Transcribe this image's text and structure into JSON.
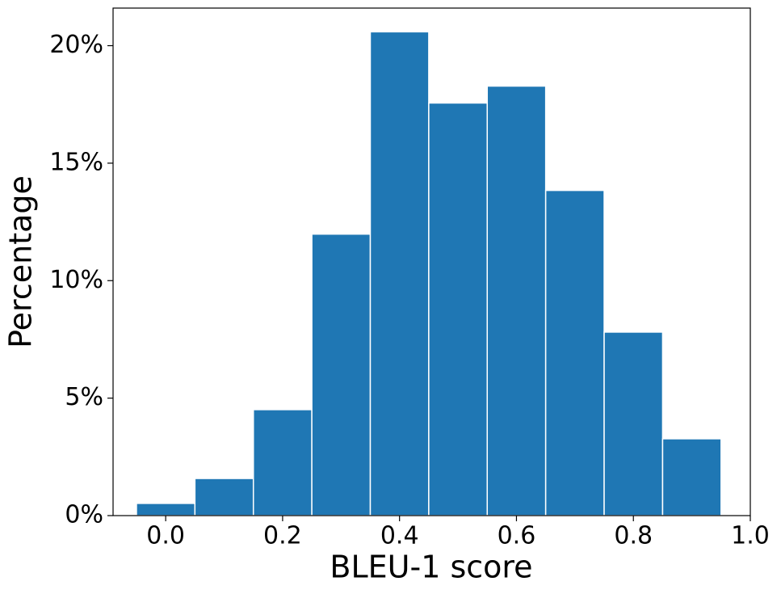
{
  "chart_data": {
    "type": "histogram",
    "x_label": "BLEU-1 score",
    "y_label": "Percentage",
    "bins": [
      -0.05,
      0.05,
      0.15,
      0.25,
      0.35,
      0.45,
      0.55,
      0.65,
      0.75,
      0.85,
      0.95
    ],
    "counts": [
      0.52,
      1.58,
      4.51,
      11.98,
      20.59,
      17.56,
      18.28,
      13.84,
      7.81,
      3.27
    ],
    "color": "#1f77b4",
    "xlim": [
      -0.09,
      1.0
    ],
    "xticks": [
      {
        "value": 0,
        "label": "0.0"
      },
      0.2,
      0.4,
      0.6,
      0.8,
      {
        "value": 1,
        "label": "1.0"
      }
    ],
    "ylim": [
      0,
      21.6
    ],
    "yticks": [
      {
        "value": 0,
        "label": "0%"
      },
      {
        "value": 5,
        "label": "5%"
      },
      {
        "value": 10,
        "label": "10%"
      },
      {
        "value": 15,
        "label": "15%"
      },
      {
        "value": 20,
        "label": "20%"
      }
    ],
    "grid": false
  }
}
